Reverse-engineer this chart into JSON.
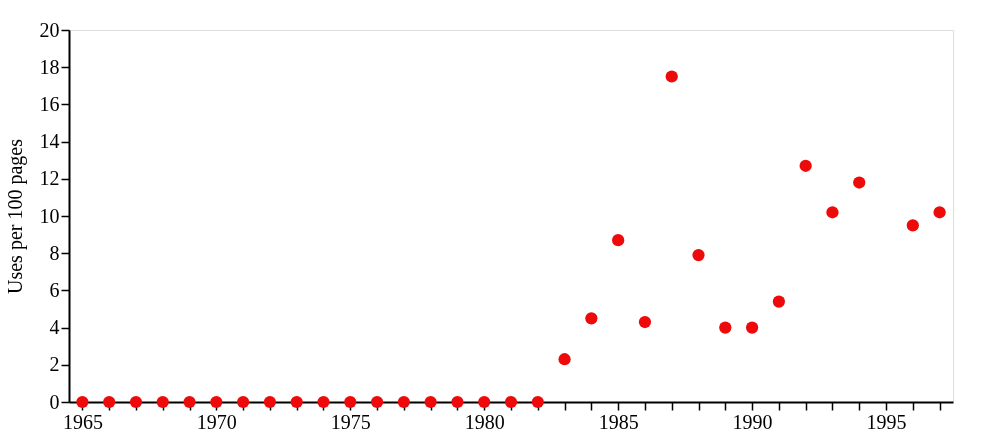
{
  "chart_data": {
    "type": "scatter",
    "ylabel": "Uses per 100 pages",
    "x": [
      1965,
      1966,
      1967,
      1968,
      1969,
      1970,
      1971,
      1972,
      1973,
      1974,
      1975,
      1976,
      1977,
      1978,
      1979,
      1980,
      1981,
      1982,
      1983,
      1984,
      1985,
      1986,
      1987,
      1988,
      1989,
      1990,
      1991,
      1992,
      1993,
      1994,
      1996,
      1997
    ],
    "series": [
      {
        "color": "#ee0a0a",
        "values": [
          0,
          0,
          0,
          0,
          0,
          0,
          0,
          0,
          0,
          0,
          0,
          0,
          0,
          0,
          0,
          0,
          0,
          0,
          2.3,
          4.5,
          8.7,
          4.3,
          17.5,
          7.9,
          4.0,
          4.0,
          5.4,
          12.7,
          10.2,
          11.8,
          9.5,
          10.2
        ]
      }
    ],
    "xlim": [
      1964.5,
      1997.5
    ],
    "xticks": [
      1965,
      {
        "value": 1966,
        "label": null
      },
      {
        "value": 1967,
        "label": null
      },
      {
        "value": 1968,
        "label": null
      },
      {
        "value": 1969,
        "label": null
      },
      1970,
      {
        "value": 1971,
        "label": null
      },
      {
        "value": 1972,
        "label": null
      },
      {
        "value": 1973,
        "label": null
      },
      {
        "value": 1974,
        "label": null
      },
      1975,
      {
        "value": 1976,
        "label": null
      },
      {
        "value": 1977,
        "label": null
      },
      {
        "value": 1978,
        "label": null
      },
      {
        "value": 1979,
        "label": null
      },
      1980,
      {
        "value": 1981,
        "label": null
      },
      {
        "value": 1982,
        "label": null
      },
      {
        "value": 1983,
        "label": null
      },
      {
        "value": 1984,
        "label": null
      },
      1985,
      {
        "value": 1986,
        "label": null
      },
      {
        "value": 1987,
        "label": null
      },
      {
        "value": 1988,
        "label": null
      },
      {
        "value": 1989,
        "label": null
      },
      1990,
      {
        "value": 1991,
        "label": null
      },
      {
        "value": 1992,
        "label": null
      },
      {
        "value": 1993,
        "label": null
      },
      {
        "value": 1994,
        "label": null
      },
      1995,
      {
        "value": 1996,
        "label": null
      },
      {
        "value": 1997,
        "label": null
      }
    ],
    "ylim": [
      0,
      20
    ],
    "yticks": [
      0,
      2,
      4,
      6,
      8,
      10,
      12,
      14,
      16,
      18,
      20
    ],
    "marker": "circle",
    "grid": false,
    "legend": false
  }
}
